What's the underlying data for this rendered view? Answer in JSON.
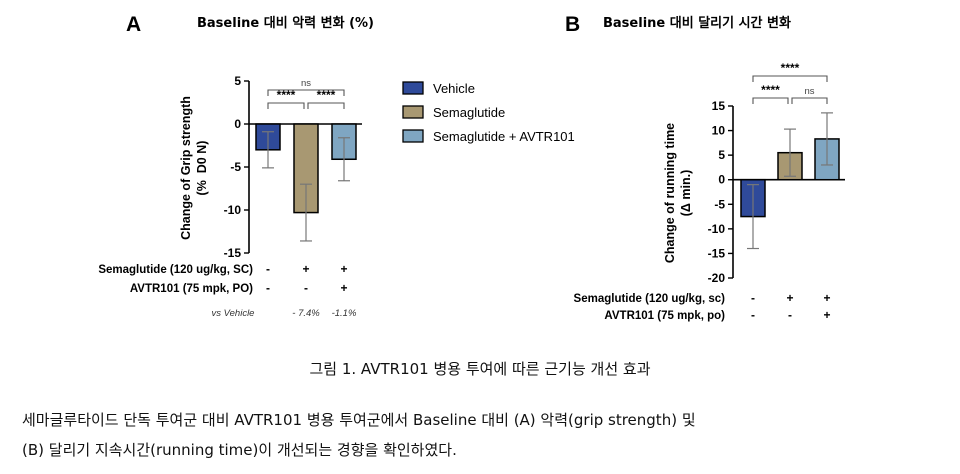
{
  "chart_data": [
    {
      "type": "bar",
      "panel_letter": "A",
      "title": "Baseline 대비 악력 변화 (%)",
      "ylabel": "Change of Grip strength",
      "ylabel_unit": "(%  D0 N)",
      "ylim": [
        -15,
        5
      ],
      "yticks": [
        "5",
        "0",
        "-5",
        "-10",
        "-15"
      ],
      "categories": [
        "Vehicle",
        "Semaglutide",
        "Semaglutide + AVTR101"
      ],
      "values": [
        -3.0,
        -10.3,
        -4.1
      ],
      "errors": [
        2.1,
        3.3,
        2.5
      ],
      "colors": [
        "#2f4a9a",
        "#a89872",
        "#7fa6c2"
      ],
      "significance": [
        {
          "from": 0,
          "to": 1,
          "label": "****"
        },
        {
          "from": 1,
          "to": 2,
          "label": "****"
        },
        {
          "from": 0,
          "to": 2,
          "label": "ns"
        }
      ],
      "condition_rows": [
        {
          "label": "Semaglutide (120 ug/kg, SC)",
          "values": [
            "-",
            "+",
            "+"
          ]
        },
        {
          "label": "AVTR101 (75 mpk, PO)",
          "values": [
            "-",
            "-",
            "+"
          ]
        }
      ],
      "comparison_row": {
        "label": "vs Vehicle",
        "values": [
          "",
          "- 7.4%",
          "-1.1%"
        ]
      },
      "grid": false
    },
    {
      "type": "bar",
      "panel_letter": "B",
      "title": "Baseline 대비 달리기 시간 변화",
      "ylabel": "Change of running time",
      "ylabel_unit": "(Δ min.)",
      "ylim": [
        -20,
        15
      ],
      "yticks": [
        "15",
        "10",
        "5",
        "0",
        "-5",
        "-10",
        "-15",
        "-20"
      ],
      "categories": [
        "Vehicle",
        "Semaglutide",
        "Semaglutide + AVTR101"
      ],
      "values": [
        -7.5,
        5.5,
        8.3
      ],
      "errors": [
        6.5,
        4.8,
        5.3
      ],
      "colors": [
        "#2f4a9a",
        "#a89872",
        "#7fa6c2"
      ],
      "significance": [
        {
          "from": 0,
          "to": 1,
          "label": "****"
        },
        {
          "from": 1,
          "to": 2,
          "label": "ns"
        },
        {
          "from": 0,
          "to": 2,
          "label": "****"
        }
      ],
      "condition_rows": [
        {
          "label": "Semaglutide (120 ug/kg, sc)",
          "values": [
            "-",
            "+",
            "+"
          ]
        },
        {
          "label": "AVTR101 (75 mpk, po)",
          "values": [
            "-",
            "-",
            "+"
          ]
        }
      ],
      "grid": false
    }
  ],
  "legend": {
    "placement": "between panels",
    "entries": [
      {
        "label": "Vehicle",
        "color": "#2f4a9a"
      },
      {
        "label": "Semaglutide",
        "color": "#a89872"
      },
      {
        "label": "Semaglutide + AVTR101",
        "color": "#7fa6c2"
      }
    ]
  },
  "caption": "그림 1. AVTR101 병용 투여에 따른 근기능 개선 효과",
  "body": {
    "line1": "세마글루타이드 단독 투여군 대비 AVTR101 병용 투여군에서 Baseline 대비 (A) 악력(grip strength) 및",
    "line2": "(B) 달리기 지속시간(running time)이 개선되는 경향을 확인하였다."
  }
}
